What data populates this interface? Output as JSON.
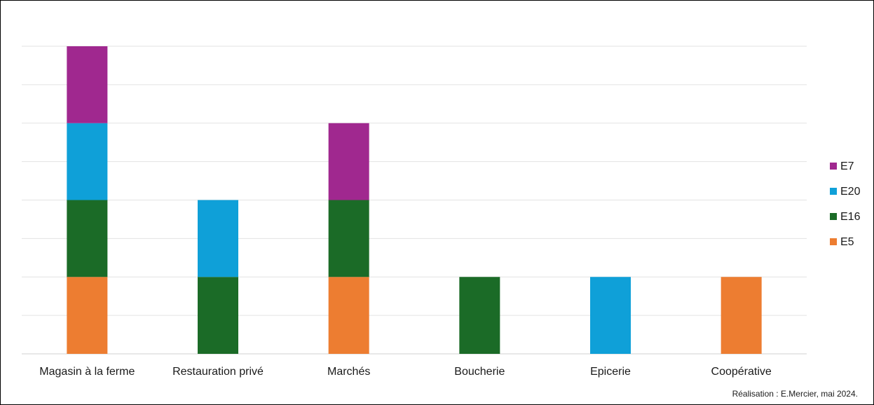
{
  "chart_data": {
    "type": "bar",
    "stacked": true,
    "categories": [
      "Magasin à la ferme",
      "Restauration privé",
      "Marchés",
      "Boucherie",
      "Epicerie",
      "Coopérative"
    ],
    "series": [
      {
        "name": "E5",
        "color": "#ED7D31",
        "values": [
          1,
          0,
          1,
          0,
          0,
          1
        ]
      },
      {
        "name": "E16",
        "color": "#1B6B27",
        "values": [
          1,
          1,
          1,
          1,
          0,
          0
        ]
      },
      {
        "name": "E20",
        "color": "#0FA0D8",
        "values": [
          1,
          1,
          0,
          0,
          1,
          0
        ]
      },
      {
        "name": "E7",
        "color": "#A0288F",
        "values": [
          1,
          0,
          1,
          0,
          0,
          0
        ]
      }
    ],
    "ylim": [
      0,
      4
    ],
    "grid": true,
    "legend_position": "right",
    "legend_order": [
      "E7",
      "E20",
      "E16",
      "E5"
    ]
  },
  "credit": "Réalisation : E.Mercier, mai 2024."
}
